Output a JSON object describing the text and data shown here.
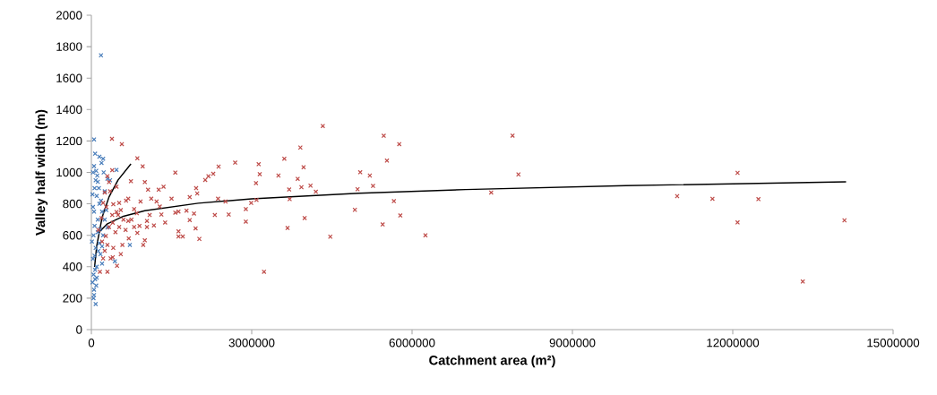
{
  "chart_data": {
    "type": "scatter",
    "xlabel": "Catchment area (m²)",
    "ylabel": "Valley half width (m)",
    "xlim": [
      0,
      15000000
    ],
    "ylim": [
      0,
      2000
    ],
    "xticks": [
      0,
      3000000,
      6000000,
      9000000,
      12000000,
      15000000
    ],
    "yticks": [
      0,
      200,
      400,
      600,
      800,
      1000,
      1200,
      1400,
      1600,
      1800,
      2000
    ],
    "series": [
      {
        "color": "#4a7ebb",
        "marker": "cross",
        "x": [
          180000,
          50000,
          70000,
          220000,
          150000,
          470000,
          720000,
          440000,
          80000,
          50000,
          20000,
          30000,
          40000,
          50000,
          60000,
          30000,
          80000,
          100000,
          120000,
          150000,
          100000,
          70000,
          50000,
          90000,
          40000,
          110000,
          140000,
          180000,
          200000,
          160000,
          220000,
          250000,
          130000,
          80000,
          60000,
          30000,
          20000,
          90000,
          120000,
          50000,
          170000,
          200000,
          70000,
          40000,
          100000,
          250000,
          280000,
          300000,
          190000,
          230000,
          150000,
          10000,
          60000,
          120000,
          200000,
          350000,
          300000
        ],
        "values": [
          1745,
          1210,
          1119,
          1087,
          1100,
          1016,
          539,
          435,
          163,
          254,
          300,
          450,
          600,
          750,
          900,
          1000,
          950,
          850,
          700,
          550,
          400,
          320,
          220,
          280,
          350,
          980,
          900,
          820,
          750,
          640,
          600,
          700,
          500,
          520,
          660,
          780,
          860,
          1010,
          940,
          1040,
          480,
          420,
          380,
          200,
          330,
          880,
          760,
          960,
          1060,
          1000,
          800,
          560,
          470,
          620,
          530,
          950,
          650
        ]
      },
      {
        "color": "#be4b48",
        "marker": "cross",
        "x": [
          385000,
          570000,
          860000,
          960000,
          1570000,
          2380000,
          2690000,
          3130000,
          3150000,
          3080000,
          2280000,
          2190000,
          2130000,
          1960000,
          1980000,
          1840000,
          1500000,
          1350000,
          1260000,
          1060000,
          1000000,
          740000,
          1120000,
          1220000,
          1280000,
          920000,
          800000,
          1090000,
          1310000,
          1380000,
          1570000,
          1630000,
          1780000,
          1920000,
          1840000,
          1950000,
          1630000,
          1630000,
          1710000,
          2020000,
          2310000,
          2510000,
          2570000,
          2890000,
          2890000,
          2990000,
          3090000,
          2370000,
          1040000,
          1040000,
          1170000,
          860000,
          1000000,
          970000,
          480000,
          300000,
          3230000,
          580000,
          640000,
          690000,
          800000,
          520000,
          500000,
          690000,
          520000,
          470000,
          390000,
          330000,
          250000,
          220000,
          360000,
          300000,
          410000,
          270000,
          220000,
          300000,
          390000,
          470000,
          330000,
          250000,
          410000,
          190000,
          130000,
          160000,
          200000,
          280000,
          350000,
          400000,
          450000,
          550000,
          600000,
          650000,
          750000,
          850000,
          900000,
          700000,
          550000,
          400000,
          4330000,
          5470000,
          5760000,
          5530000,
          7880000,
          7990000,
          7480000,
          3910000,
          3610000,
          3970000,
          3500000,
          3860000,
          5030000,
          5210000,
          5270000,
          4980000,
          3700000,
          3930000,
          4100000,
          4200000,
          3710000,
          5660000,
          4930000,
          5780000,
          3990000,
          3670000,
          5450000,
          4470000,
          6250000,
          10960000,
          11620000,
          12090000,
          12090000,
          12480000,
          13310000,
          14090000
        ],
        "values": [
          1214,
          1180,
          1090,
          1039,
          999,
          1037,
          1062,
          1052,
          989,
          932,
          991,
          976,
          952,
          900,
          866,
          843,
          833,
          909,
          890,
          890,
          938,
          944,
          833,
          815,
          783,
          815,
          767,
          729,
          732,
          681,
          744,
          751,
          757,
          738,
          697,
          644,
          625,
          592,
          592,
          577,
          729,
          815,
          732,
          767,
          687,
          806,
          825,
          833,
          691,
          653,
          663,
          615,
          568,
          539,
          406,
          368,
          368,
          539,
          634,
          691,
          653,
          653,
          729,
          833,
          806,
          748,
          729,
          653,
          501,
          453,
          453,
          539,
          520,
          596,
          806,
          976,
          1014,
          909,
          938,
          872,
          797,
          710,
          634,
          368,
          560,
          780,
          880,
          680,
          620,
          760,
          700,
          820,
          700,
          740,
          660,
          580,
          480,
          460,
          1295,
          1233,
          1180,
          1075,
          1234,
          987,
          872,
          1158,
          1087,
          1033,
          980,
          959,
          1001,
          980,
          914,
          893,
          891,
          906,
          916,
          877,
          830,
          817,
          762,
          726,
          710,
          646,
          669,
          591,
          600,
          849,
          832,
          997,
          682,
          830,
          306,
          695
        ]
      },
      {
        "type": "line",
        "color": "#000000",
        "marker": "none",
        "x": [
          60000,
          100000,
          200000,
          330000,
          500000,
          740000
        ],
        "values": [
          399,
          532,
          713,
          844,
          952,
          1054
        ]
      },
      {
        "type": "line",
        "color": "#000000",
        "marker": "none",
        "x": [
          130000,
          300000,
          600000,
          1000000,
          2000000,
          3000000,
          5000000,
          7000000,
          10000000,
          14120000
        ],
        "values": [
          615,
          673,
          721,
          756,
          804,
          832,
          868,
          891,
          916,
          940
        ]
      }
    ]
  }
}
